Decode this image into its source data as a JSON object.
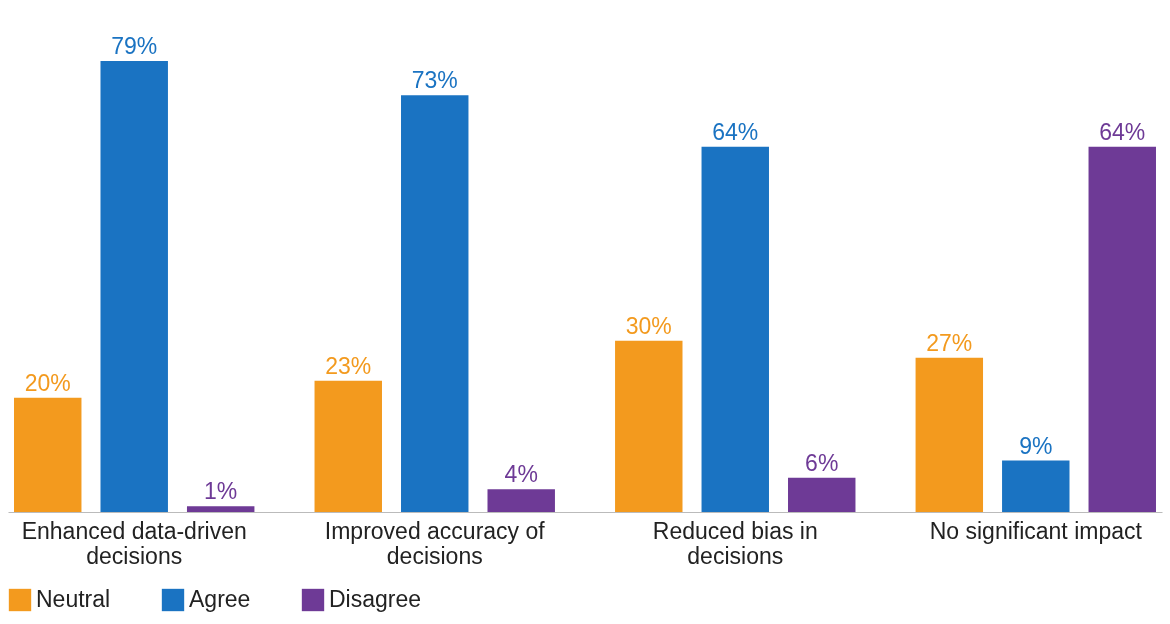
{
  "chart_data": {
    "type": "bar",
    "categories": [
      "Enhanced data-driven decisions",
      "Improved accuracy of decisions",
      "Reduced bias in decisions",
      "No significant impact"
    ],
    "series": [
      {
        "name": "Neutral",
        "color": "#f39a1e",
        "values": [
          20,
          23,
          30,
          27
        ],
        "value_labels": [
          "20%",
          "23%",
          "30%",
          "27%"
        ]
      },
      {
        "name": "Agree",
        "color": "#1a73c2",
        "values": [
          79,
          73,
          64,
          9
        ],
        "value_labels": [
          "79%",
          "73%",
          "64%",
          "9%"
        ]
      },
      {
        "name": "Disagree",
        "color": "#6e3a96",
        "values": [
          1,
          4,
          6,
          64
        ],
        "value_labels": [
          "1%",
          "4%",
          "6%",
          "64%"
        ]
      }
    ],
    "legend": "bottom",
    "grid": false
  }
}
